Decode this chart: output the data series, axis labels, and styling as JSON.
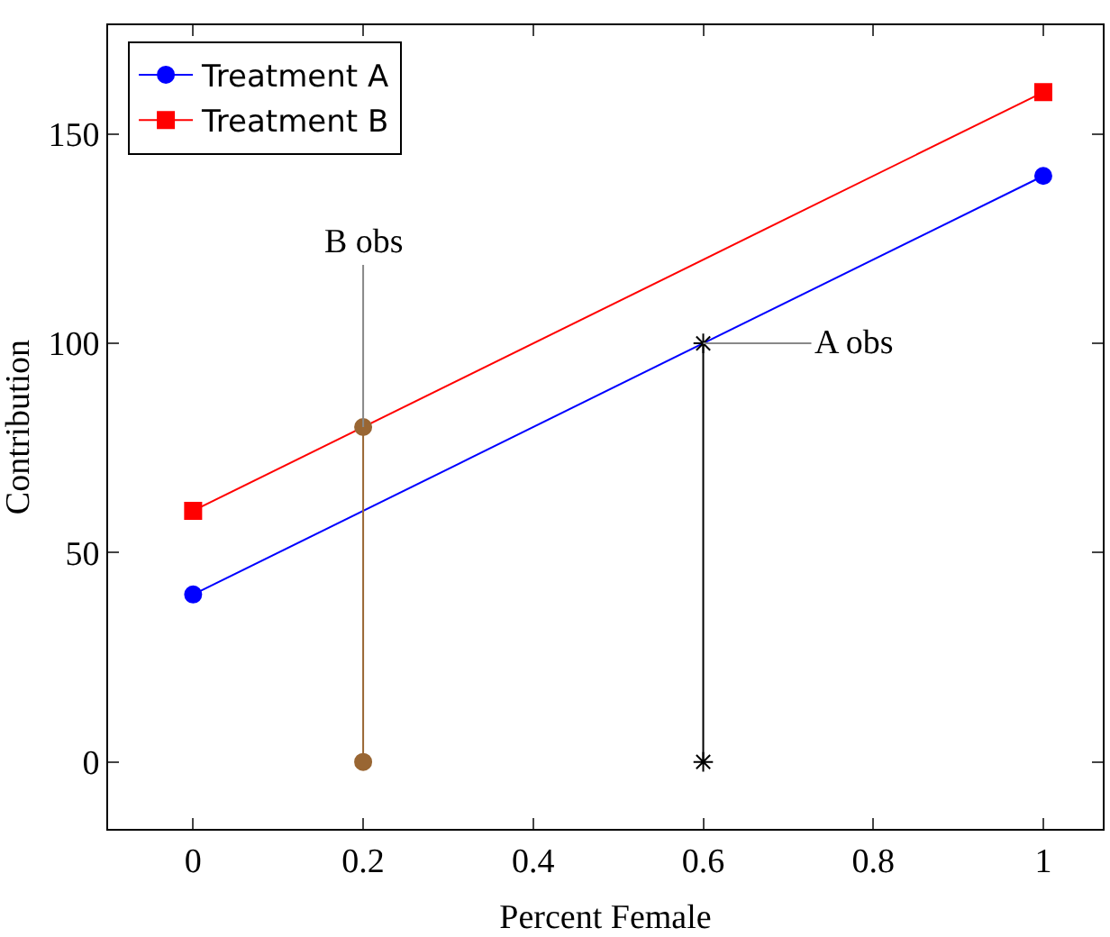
{
  "chart_data": {
    "type": "line",
    "xlabel": "Percent Female",
    "ylabel": "Contribution",
    "series": [
      {
        "name": "Treatment A",
        "color": "#0000ff",
        "marker": "circle",
        "x": [
          0,
          1
        ],
        "values": [
          40,
          140
        ]
      },
      {
        "name": "Treatment B",
        "color": "#ff0000",
        "marker": "square",
        "x": [
          0,
          1
        ],
        "values": [
          60,
          160
        ]
      },
      {
        "color": "#996633",
        "marker": "circle",
        "x": [
          0.2,
          0.2
        ],
        "values": [
          0,
          80
        ]
      },
      {
        "color": "#000000",
        "marker": "cross",
        "x": [
          0.6,
          0.6
        ],
        "values": [
          0,
          100
        ]
      }
    ],
    "annotations": [
      {
        "text": "B obs",
        "x": 0.2,
        "y": 80
      },
      {
        "text": "A obs",
        "x": 0.6,
        "y": 100
      }
    ],
    "xlim": [
      -0.1,
      1.07
    ],
    "ylim": [
      -16,
      176
    ],
    "xticks": [
      0,
      0.2,
      0.4,
      0.6,
      0.8,
      1
    ],
    "yticks": [
      0,
      50,
      100,
      150
    ],
    "grid": false,
    "legend": "top left"
  }
}
